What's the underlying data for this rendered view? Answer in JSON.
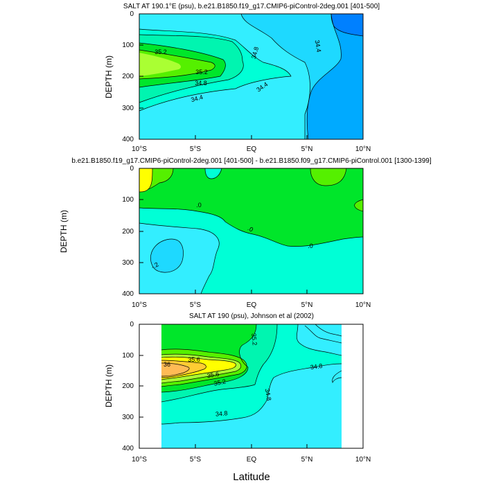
{
  "figure": {
    "xlabel": "Latitude",
    "ylabel": "DEPTH (m)"
  },
  "colors": {
    "deep_blue": "#0080ff",
    "blue": "#00aaff",
    "light_blue": "#1ed9ff",
    "cyan": "#33eeff",
    "aqua": "#00ffd6",
    "sea_green": "#00f5b0",
    "green": "#00e62a",
    "bright_green": "#55f000",
    "yellow_green": "#aaff33",
    "yellow": "#ffff00",
    "light_orange": "#ffcc33",
    "orange": "#ffbb55"
  },
  "chart_data": [
    {
      "type": "contour",
      "title": "SALT AT 190.1°E (psu), b.e21.B1850.f19_g17.CMIP6-piControl-2deg.001 [401-500]",
      "xlabel": "",
      "ylabel": "DEPTH (m)",
      "xlim": [
        -10,
        10
      ],
      "ylim": [
        400,
        0
      ],
      "xticks": [
        "10°S",
        "5°S",
        "EQ",
        "5°N",
        "10°N"
      ],
      "yticks": [
        "0",
        "100",
        "200",
        "300",
        "400"
      ],
      "contour_labels": [
        "35.2",
        "35.2",
        "34.8",
        "34.8",
        "34.4",
        "34.4",
        "34.4"
      ]
    },
    {
      "type": "contour",
      "title": "b.e21.B1850.f19_g17.CMIP6-piControl-2deg.001 [401-500] - b.e21.B1850.f09_g17.CMIP6-piControl.001 [1300-1399]",
      "xlabel": "",
      "ylabel": "DEPTH (m)",
      "xlim": [
        -10,
        10
      ],
      "ylim": [
        400,
        0
      ],
      "xticks": [
        "10°S",
        "5°S",
        "EQ",
        "5°N",
        "10°N"
      ],
      "yticks": [
        "0",
        "100",
        "200",
        "300",
        "400"
      ],
      "contour_labels": [
        ".0",
        ".0",
        ".0",
        "-.2"
      ]
    },
    {
      "type": "contour",
      "title": "SALT AT 190 (psu), Johnson et al (2002)",
      "xlabel": "Latitude",
      "ylabel": "DEPTH (m)",
      "xlim": [
        -10,
        10
      ],
      "ylim": [
        400,
        0
      ],
      "xticks": [
        "10°S",
        "5°S",
        "EQ",
        "5°N",
        "10°N"
      ],
      "yticks": [
        "0",
        "100",
        "200",
        "300",
        "400"
      ],
      "contour_labels": [
        "35.2",
        "35.6",
        "36",
        "35.6",
        "35.2",
        "34.8",
        "34.8",
        "34.8"
      ]
    }
  ]
}
